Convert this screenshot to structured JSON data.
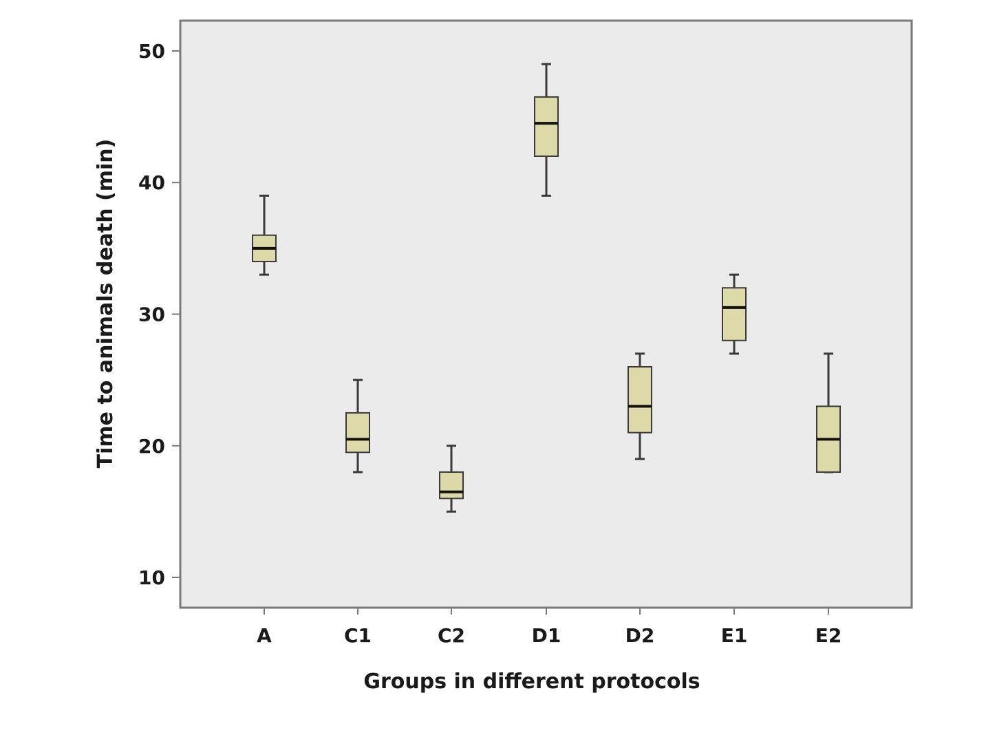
{
  "chart_data": {
    "type": "boxplot",
    "title": "",
    "xlabel": "Groups in different protocols",
    "ylabel": "Time to animals death (min)",
    "categories": [
      "A",
      "C1",
      "C2",
      "D1",
      "D2",
      "E1",
      "E2"
    ],
    "boxes": [
      {
        "category": "A",
        "min": 33,
        "q1": 34,
        "median": 35,
        "q3": 36,
        "max": 39
      },
      {
        "category": "C1",
        "min": 18,
        "q1": 19.5,
        "median": 20.5,
        "q3": 22.5,
        "max": 25
      },
      {
        "category": "C2",
        "min": 15,
        "q1": 16,
        "median": 16.5,
        "q3": 18,
        "max": 20
      },
      {
        "category": "D1",
        "min": 39,
        "q1": 42,
        "median": 44.5,
        "q3": 46.5,
        "max": 49
      },
      {
        "category": "D2",
        "min": 19,
        "q1": 21,
        "median": 23,
        "q3": 26,
        "max": 27
      },
      {
        "category": "E1",
        "min": 27,
        "q1": 28,
        "median": 30.5,
        "q3": 32,
        "max": 33
      },
      {
        "category": "E2",
        "min": 18,
        "q1": 18,
        "median": 20.5,
        "q3": 23,
        "max": 27
      }
    ],
    "y_ticks": [
      10,
      20,
      30,
      40,
      50
    ],
    "ylim": [
      7.7,
      52.3
    ],
    "grid": false,
    "colors": {
      "plot_background": "#ebebeb",
      "box_fill": "#ddd9a8",
      "box_stroke": "#3a3a3a",
      "median": "#111111",
      "frame": "#7a7a7a"
    }
  }
}
